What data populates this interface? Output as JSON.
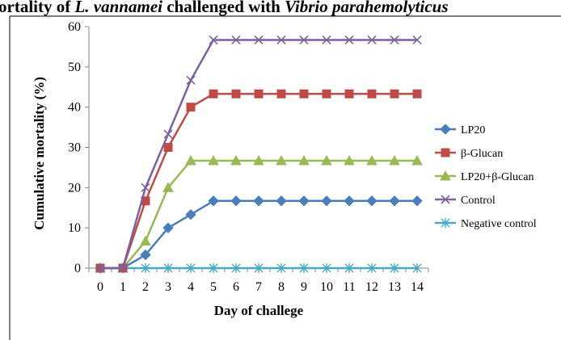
{
  "title": {
    "before": "ortality of ",
    "italic1": "L. vannamei",
    "middle": " challenged with ",
    "italic2": "Vibrio parahemolyticus"
  },
  "chart_data": {
    "type": "line",
    "x": [
      0,
      1,
      2,
      3,
      4,
      5,
      6,
      7,
      8,
      9,
      10,
      11,
      12,
      13,
      14
    ],
    "xlabel": "Day of challege",
    "ylabel": "Cumulative mortality (%)",
    "ylim": [
      0,
      60
    ],
    "yticks": [
      0,
      10,
      20,
      30,
      40,
      50,
      60
    ],
    "grid": false,
    "legend_position": "right",
    "series": [
      {
        "name": "LP20",
        "color": "#4a7ebb",
        "marker": "diamond",
        "values": [
          0,
          0,
          3.3,
          10,
          13.3,
          16.7,
          16.7,
          16.7,
          16.7,
          16.7,
          16.7,
          16.7,
          16.7,
          16.7,
          16.7
        ]
      },
      {
        "name": "β-Glucan",
        "color": "#be4b48",
        "marker": "square",
        "values": [
          0,
          0,
          16.7,
          30,
          40,
          43.3,
          43.3,
          43.3,
          43.3,
          43.3,
          43.3,
          43.3,
          43.3,
          43.3,
          43.3
        ]
      },
      {
        "name": "LP20+β-Glucan",
        "color": "#98b954",
        "marker": "triangle",
        "values": [
          0,
          0,
          6.7,
          20,
          26.7,
          26.7,
          26.7,
          26.7,
          26.7,
          26.7,
          26.7,
          26.7,
          26.7,
          26.7,
          26.7
        ]
      },
      {
        "name": "Control",
        "color": "#7d60a0",
        "marker": "x",
        "values": [
          0,
          0,
          20,
          33.3,
          46.7,
          56.7,
          56.7,
          56.7,
          56.7,
          56.7,
          56.7,
          56.7,
          56.7,
          56.7,
          56.7
        ]
      },
      {
        "name": "Negative control",
        "color": "#46aac5",
        "marker": "star",
        "values": [
          0,
          0,
          0,
          0,
          0,
          0,
          0,
          0,
          0,
          0,
          0,
          0,
          0,
          0,
          0
        ]
      }
    ]
  }
}
